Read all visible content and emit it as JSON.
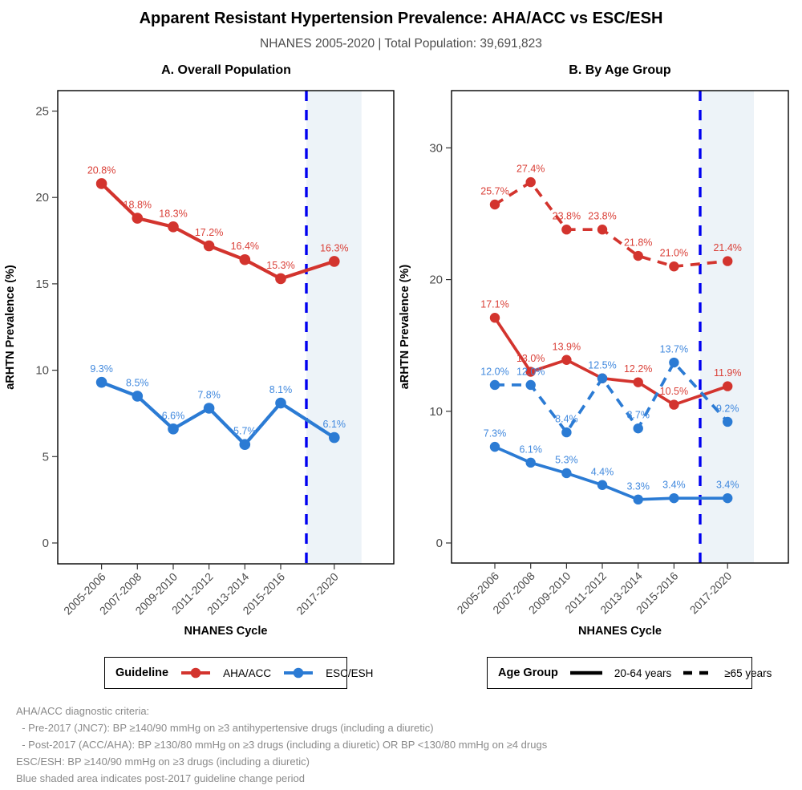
{
  "header": {
    "title": "Apparent Resistant Hypertension Prevalence: AHA/ACC vs ESC/ESH",
    "subtitle": "NHANES 2005-2020 | Total Population: 39,691,823"
  },
  "colors": {
    "red": "#D3342E",
    "blue": "#2B7BD4",
    "red_label": "#DA4038",
    "blue_label": "#4189DE",
    "vline": "#0000F0",
    "shade": "#EDF3F8",
    "tick_text": "#4D4D4D",
    "axis_line": "#000000"
  },
  "chart_data": [
    {
      "panel": "A",
      "title": "A. Overall Population",
      "type": "line",
      "xlabel": "NHANES Cycle",
      "ylabel": "aRHTN Prevalence (%)",
      "categories": [
        "2005-2006",
        "2007-2008",
        "2009-2010",
        "2011-2012",
        "2013-2014",
        "2015-2016",
        "2017-2020"
      ],
      "yticks": [
        0,
        5,
        10,
        15,
        20,
        25
      ],
      "ylim": [
        -1.2,
        26.2
      ],
      "grid": false,
      "annotations": {
        "dashed_vline_after": "2015-2016",
        "shaded_region": "post-2017 guideline change period"
      },
      "series": [
        {
          "name": "AHA/ACC",
          "guideline": "AHA/ACC",
          "dash": "solid",
          "values": [
            20.8,
            18.8,
            18.3,
            17.2,
            16.4,
            15.3,
            16.3
          ],
          "labels": [
            "20.8%",
            "18.8%",
            "18.3%",
            "17.2%",
            "16.4%",
            "15.3%",
            "16.3%"
          ]
        },
        {
          "name": "ESC/ESH",
          "guideline": "ESC/ESH",
          "dash": "solid",
          "values": [
            9.3,
            8.5,
            6.6,
            7.8,
            5.7,
            8.1,
            6.1
          ],
          "labels": [
            "9.3%",
            "8.5%",
            "6.6%",
            "7.8%",
            "5.7%",
            "8.1%",
            "6.1%"
          ]
        }
      ]
    },
    {
      "panel": "B",
      "title": "B. By Age Group",
      "type": "line",
      "xlabel": "NHANES Cycle",
      "ylabel": "aRHTN Prevalence (%)",
      "categories": [
        "2005-2006",
        "2007-2008",
        "2009-2010",
        "2011-2012",
        "2013-2014",
        "2015-2016",
        "2017-2020"
      ],
      "yticks": [
        0,
        10,
        20,
        30
      ],
      "ylim": [
        -1.5,
        34.4
      ],
      "grid": false,
      "annotations": {
        "dashed_vline_after": "2015-2016",
        "shaded_region": "post-2017 guideline change period"
      },
      "series": [
        {
          "name": "AHA/ACC 20-64 years",
          "guideline": "AHA/ACC",
          "age_group": "20-64 years",
          "dash": "solid",
          "values": [
            17.1,
            13.0,
            13.9,
            12.5,
            12.2,
            10.5,
            11.9
          ],
          "labels": [
            "17.1%",
            "13.0%",
            "13.9%",
            null,
            "12.2%",
            "10.5%",
            "11.9%"
          ]
        },
        {
          "name": "AHA/ACC ≥65 years",
          "guideline": "AHA/ACC",
          "age_group": "≥65 years",
          "dash": "dashed",
          "values": [
            25.7,
            27.4,
            23.8,
            23.8,
            21.8,
            21.0,
            21.4
          ],
          "labels": [
            "25.7%",
            "27.4%",
            "23.8%",
            "23.8%",
            "21.8%",
            "21.0%",
            "21.4%"
          ]
        },
        {
          "name": "ESC/ESH 20-64 years",
          "guideline": "ESC/ESH",
          "age_group": "20-64 years",
          "dash": "solid",
          "values": [
            7.3,
            6.1,
            5.3,
            4.4,
            3.3,
            3.4,
            3.4
          ],
          "labels": [
            "7.3%",
            "6.1%",
            "5.3%",
            "4.4%",
            "3.3%",
            "3.4%",
            "3.4%"
          ]
        },
        {
          "name": "ESC/ESH ≥65 years",
          "guideline": "ESC/ESH",
          "age_group": "≥65 years",
          "dash": "dashed",
          "values": [
            12.0,
            12.0,
            8.4,
            12.5,
            8.7,
            13.7,
            9.2
          ],
          "labels": [
            "12.0%",
            "12.0%",
            "8.4%",
            "12.5%",
            "8.7%",
            "13.7%",
            "9.2%"
          ]
        }
      ]
    }
  ],
  "legend_guideline": {
    "title": "Guideline",
    "items": [
      {
        "label": "AHA/ACC",
        "color": "#D3342E"
      },
      {
        "label": "ESC/ESH",
        "color": "#2B7BD4"
      }
    ]
  },
  "legend_age": {
    "title": "Age Group",
    "items": [
      {
        "label": "20-64 years",
        "style": "solid"
      },
      {
        "label": "≥65 years",
        "style": "dashed"
      }
    ]
  },
  "footnotes": [
    "AHA/ACC diagnostic criteria:",
    "  - Pre-2017 (JNC7): BP ≥140/90 mmHg on ≥3 antihypertensive drugs (including a diuretic)",
    "  - Post-2017 (ACC/AHA): BP ≥130/80 mmHg on ≥3 drugs (including a diuretic) OR BP <130/80 mmHg on ≥4 drugs",
    "ESC/ESH: BP ≥140/90 mmHg on ≥3 drugs (including a diuretic)",
    "Blue shaded area indicates post-2017 guideline change period"
  ]
}
